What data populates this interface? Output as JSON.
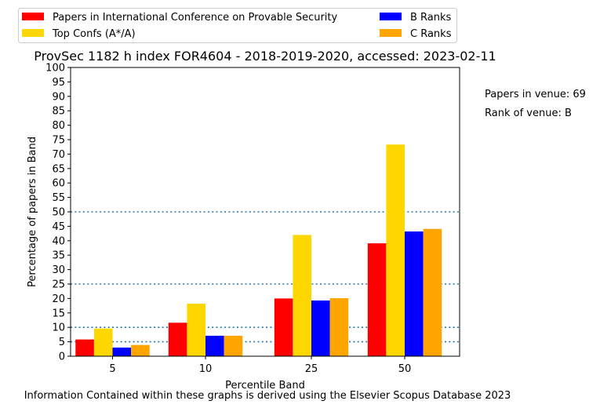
{
  "chart_data": {
    "type": "bar",
    "title": "ProvSec 1182 h index FOR4604 - 2018-2019-2020, accessed: 2023-02-11",
    "xlabel": "Percentile Band",
    "ylabel": "Percentage of papers in Band",
    "categories": [
      "5",
      "10",
      "25",
      "50"
    ],
    "ylim": [
      0,
      100
    ],
    "yticks": [
      0,
      5,
      10,
      15,
      20,
      25,
      30,
      35,
      40,
      45,
      50,
      55,
      60,
      65,
      70,
      75,
      80,
      85,
      90,
      95,
      100
    ],
    "reference_lines": [
      5,
      10,
      25,
      50
    ],
    "legend_position": "top-left",
    "series": [
      {
        "name": "Papers in International Conference on Provable Security",
        "color": "#ff0000",
        "values": [
          5.8,
          11.6,
          20.0,
          39.1
        ]
      },
      {
        "name": "Top Confs (A*/A)",
        "color": "#ffd700",
        "values": [
          9.6,
          18.2,
          42.0,
          73.3
        ]
      },
      {
        "name": "B Ranks",
        "color": "#0000ff",
        "values": [
          3.0,
          7.1,
          19.3,
          43.2
        ]
      },
      {
        "name": "C Ranks",
        "color": "#ffa500",
        "values": [
          3.9,
          7.1,
          20.1,
          44.1
        ]
      }
    ]
  },
  "annotations": {
    "papers_in_venue": "Papers in venue: 69",
    "rank_of_venue": "Rank of venue: B"
  },
  "footer": "Information Contained within these graphs is derived using the Elsevier Scopus Database 2023",
  "colors": {
    "reference_line": "#1f77b4"
  }
}
